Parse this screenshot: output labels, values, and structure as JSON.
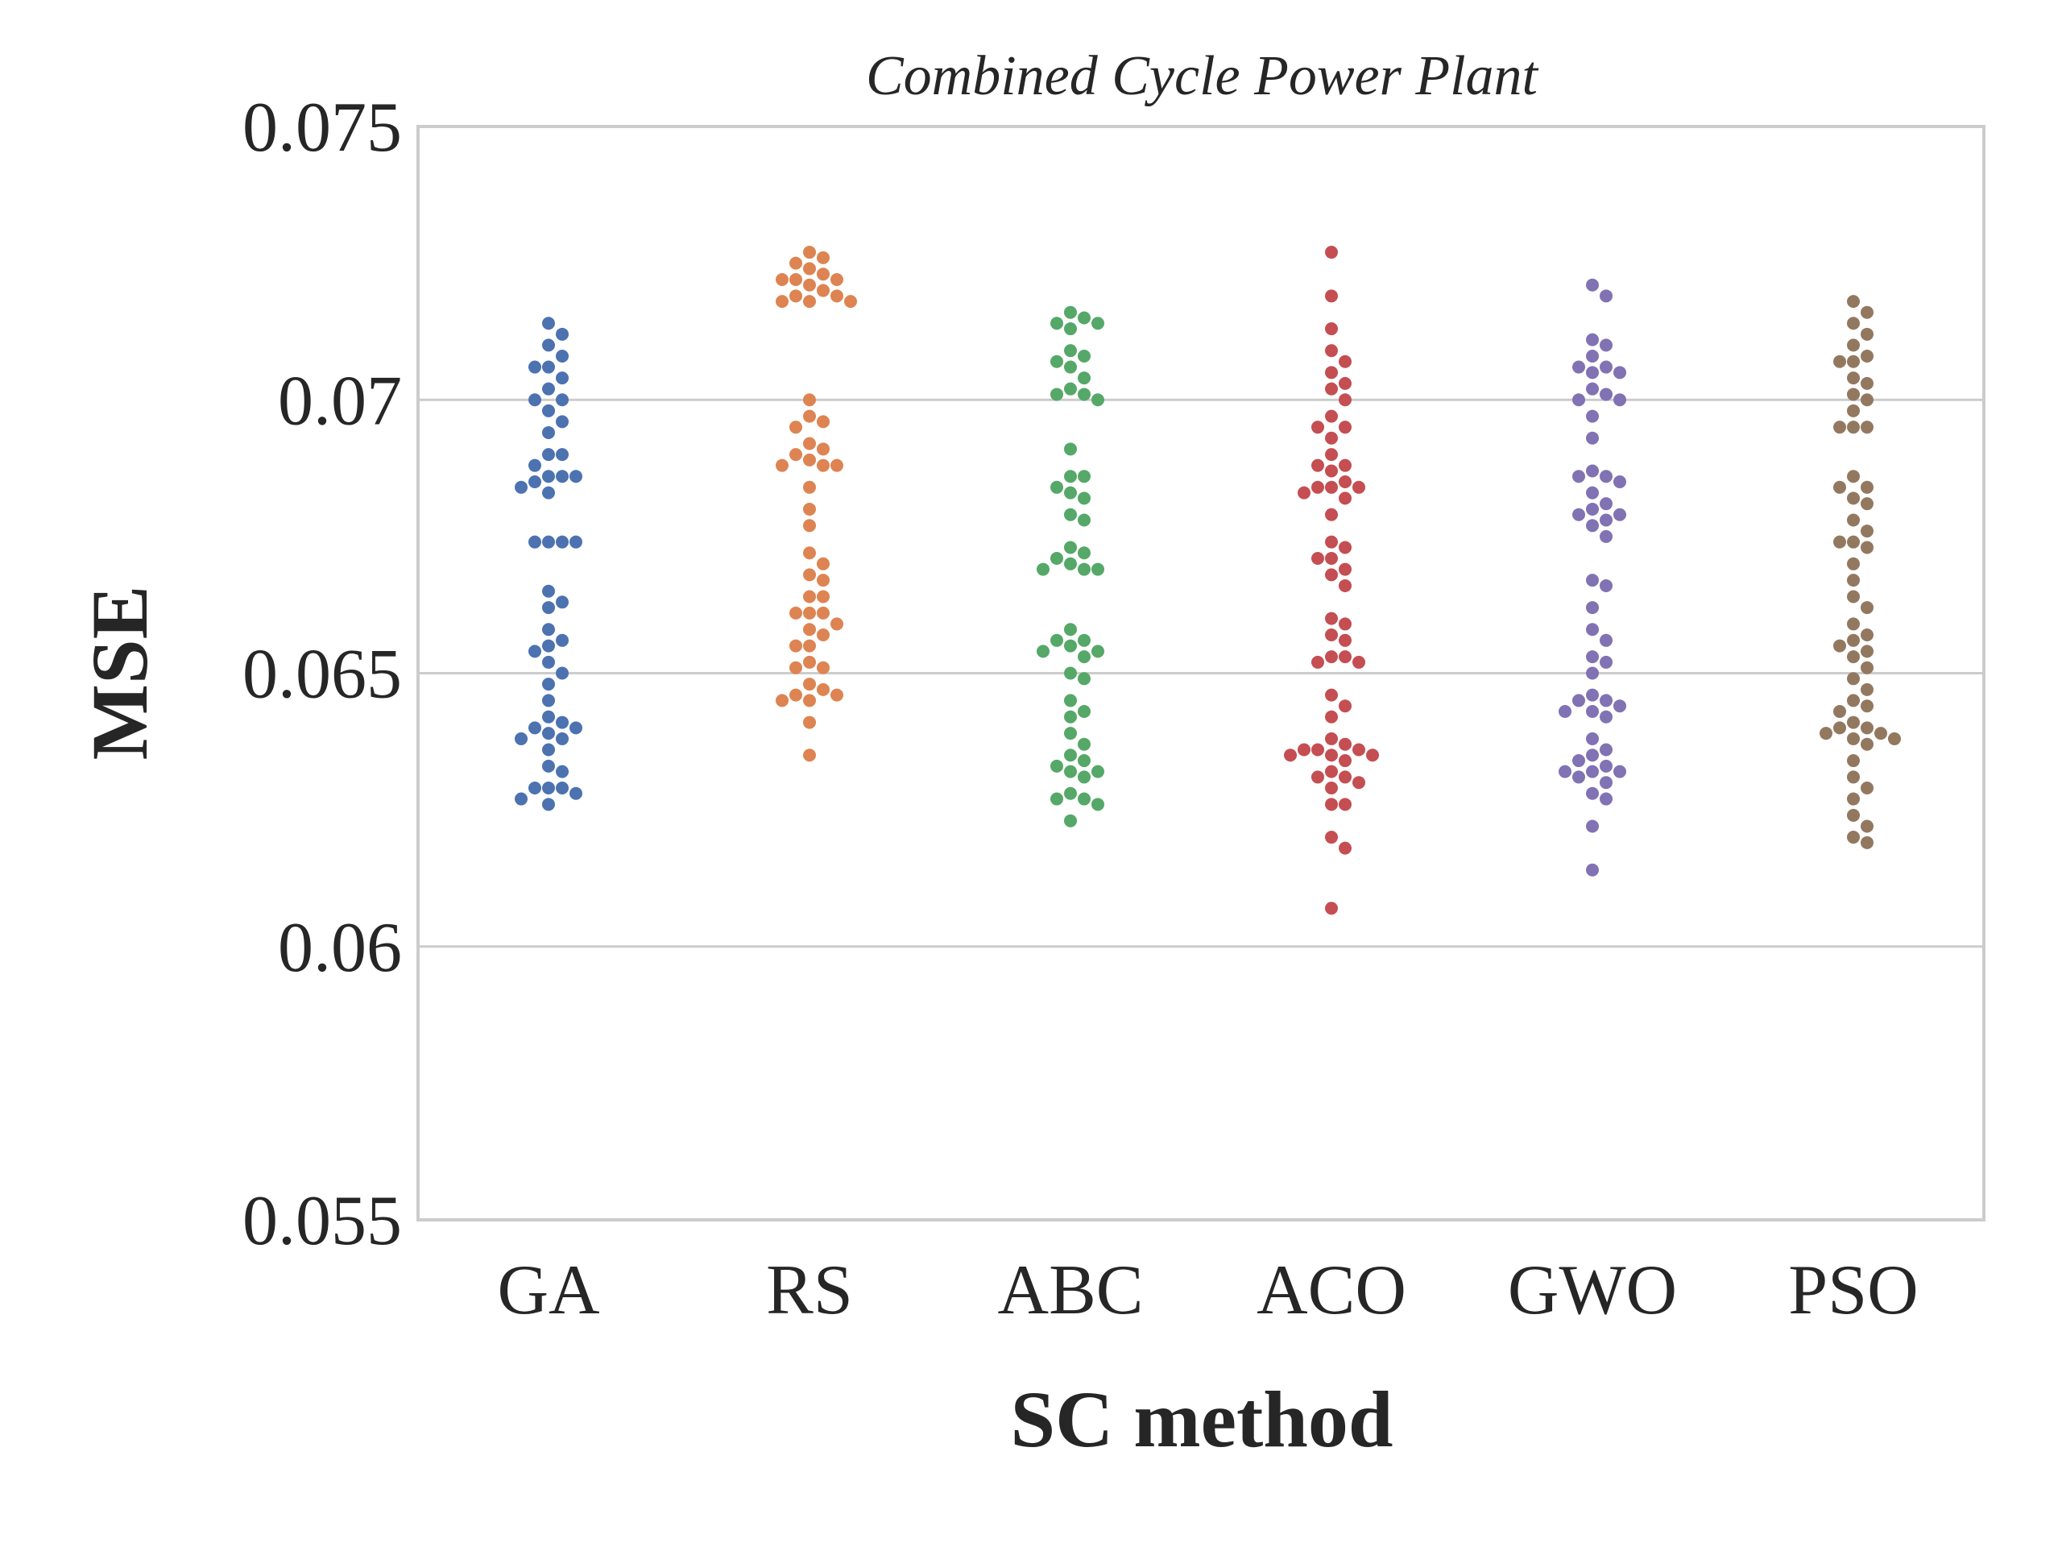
{
  "chart_data": {
    "type": "scatter",
    "subtype": "swarm",
    "title": "Combined Cycle Power Plant",
    "xlabel": "SC method",
    "ylabel": "MSE",
    "categories": [
      "GA",
      "RS",
      "ABC",
      "ACO",
      "GWO",
      "PSO"
    ],
    "ylim": [
      0.055,
      0.075
    ],
    "yticks": [
      "0.055",
      "0.06",
      "0.065",
      "0.07",
      "0.075"
    ],
    "grid": "horizontal",
    "colors": [
      "#4c72b0",
      "#dd8452",
      "#55a868",
      "#c44e52",
      "#8172b3",
      "#937860"
    ],
    "series": [
      {
        "category": "GA",
        "values": [
          0.0714,
          0.0712,
          0.071,
          0.0708,
          0.0706,
          0.0706,
          0.0704,
          0.0702,
          0.07,
          0.07,
          0.0698,
          0.0696,
          0.0694,
          0.069,
          0.069,
          0.0688,
          0.0686,
          0.0686,
          0.0686,
          0.0685,
          0.0684,
          0.0683,
          0.0674,
          0.0674,
          0.0674,
          0.0674,
          0.0665,
          0.0663,
          0.0662,
          0.0658,
          0.0656,
          0.0655,
          0.0654,
          0.0652,
          0.065,
          0.0648,
          0.0645,
          0.0642,
          0.0641,
          0.064,
          0.064,
          0.0639,
          0.0638,
          0.0638,
          0.0636,
          0.0633,
          0.0632,
          0.0629,
          0.0629,
          0.0629,
          0.0628,
          0.0627,
          0.0626
        ]
      },
      {
        "category": "RS",
        "values": [
          0.0727,
          0.0726,
          0.0725,
          0.0724,
          0.0723,
          0.0722,
          0.0722,
          0.0722,
          0.0721,
          0.072,
          0.0719,
          0.0719,
          0.0718,
          0.0718,
          0.0718,
          0.07,
          0.0697,
          0.0696,
          0.0695,
          0.0692,
          0.0691,
          0.069,
          0.0689,
          0.0688,
          0.0688,
          0.0688,
          0.0684,
          0.068,
          0.0677,
          0.0672,
          0.067,
          0.0668,
          0.0667,
          0.0664,
          0.0664,
          0.0661,
          0.0661,
          0.0661,
          0.0659,
          0.0658,
          0.0657,
          0.0655,
          0.0655,
          0.0652,
          0.0651,
          0.0651,
          0.0648,
          0.0647,
          0.0646,
          0.0646,
          0.0645,
          0.0645,
          0.0641,
          0.0635
        ]
      },
      {
        "category": "ABC",
        "values": [
          0.0716,
          0.0715,
          0.0714,
          0.0714,
          0.0713,
          0.0709,
          0.0708,
          0.0707,
          0.0706,
          0.0704,
          0.0702,
          0.0701,
          0.0701,
          0.07,
          0.0691,
          0.0686,
          0.0686,
          0.0684,
          0.0683,
          0.0682,
          0.0679,
          0.0678,
          0.0673,
          0.0672,
          0.0671,
          0.067,
          0.0669,
          0.0669,
          0.0669,
          0.0658,
          0.0656,
          0.0656,
          0.0655,
          0.0654,
          0.0654,
          0.0653,
          0.065,
          0.0649,
          0.0645,
          0.0643,
          0.0642,
          0.0639,
          0.0637,
          0.0635,
          0.0634,
          0.0633,
          0.0632,
          0.0632,
          0.0631,
          0.0628,
          0.0627,
          0.0627,
          0.0626,
          0.0623
        ]
      },
      {
        "category": "ACO",
        "values": [
          0.0727,
          0.0719,
          0.0713,
          0.0709,
          0.0707,
          0.0705,
          0.0703,
          0.0702,
          0.07,
          0.0697,
          0.0695,
          0.0695,
          0.0693,
          0.069,
          0.0688,
          0.0688,
          0.0687,
          0.0685,
          0.0684,
          0.0684,
          0.0684,
          0.0683,
          0.0682,
          0.0679,
          0.0674,
          0.0673,
          0.0671,
          0.0671,
          0.0669,
          0.0668,
          0.0666,
          0.066,
          0.0659,
          0.0657,
          0.0656,
          0.0653,
          0.0653,
          0.0652,
          0.0652,
          0.0646,
          0.0644,
          0.0642,
          0.0638,
          0.0637,
          0.0636,
          0.0636,
          0.0636,
          0.0635,
          0.0635,
          0.0635,
          0.0634,
          0.0632,
          0.0631,
          0.0631,
          0.063,
          0.0629,
          0.0626,
          0.0626,
          0.062,
          0.0618,
          0.0607
        ]
      },
      {
        "category": "GWO",
        "values": [
          0.0721,
          0.0719,
          0.0711,
          0.071,
          0.0708,
          0.0706,
          0.0706,
          0.0705,
          0.0705,
          0.0702,
          0.0701,
          0.07,
          0.07,
          0.0697,
          0.0693,
          0.0687,
          0.0686,
          0.0686,
          0.0685,
          0.0683,
          0.0681,
          0.068,
          0.0679,
          0.0679,
          0.0678,
          0.0677,
          0.0675,
          0.0667,
          0.0666,
          0.0662,
          0.0658,
          0.0656,
          0.0653,
          0.0652,
          0.065,
          0.0646,
          0.0645,
          0.0645,
          0.0644,
          0.0643,
          0.0643,
          0.0642,
          0.0638,
          0.0636,
          0.0635,
          0.0634,
          0.0633,
          0.0632,
          0.0632,
          0.0632,
          0.0631,
          0.063,
          0.0628,
          0.0627,
          0.0622,
          0.0614
        ]
      },
      {
        "category": "PSO",
        "values": [
          0.0718,
          0.0716,
          0.0714,
          0.0712,
          0.071,
          0.0708,
          0.0707,
          0.0707,
          0.0704,
          0.0703,
          0.0701,
          0.07,
          0.0698,
          0.0695,
          0.0695,
          0.0695,
          0.0686,
          0.0684,
          0.0684,
          0.0682,
          0.0681,
          0.0678,
          0.0676,
          0.0674,
          0.0674,
          0.0673,
          0.067,
          0.0667,
          0.0664,
          0.0662,
          0.0659,
          0.0657,
          0.0656,
          0.0655,
          0.0654,
          0.0653,
          0.0651,
          0.0649,
          0.0647,
          0.0645,
          0.0644,
          0.0643,
          0.0641,
          0.064,
          0.064,
          0.0639,
          0.0639,
          0.0638,
          0.0638,
          0.0637,
          0.0634,
          0.0631,
          0.0629,
          0.0627,
          0.0624,
          0.0622,
          0.062,
          0.0619
        ]
      }
    ]
  }
}
